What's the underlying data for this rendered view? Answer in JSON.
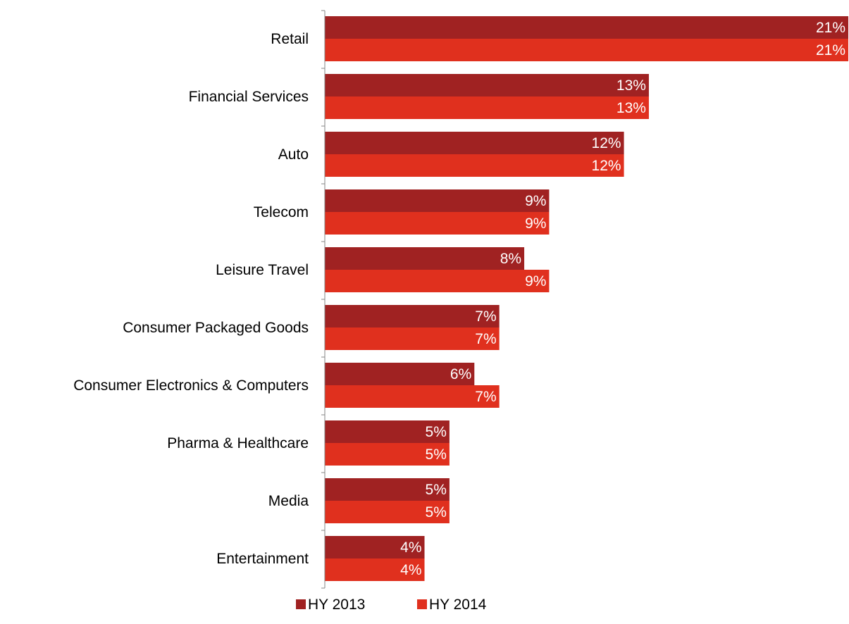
{
  "chart_data": {
    "type": "bar",
    "orientation": "horizontal",
    "categories": [
      "Retail",
      "Financial Services",
      "Auto",
      "Telecom",
      "Leisure Travel",
      "Consumer Packaged Goods",
      "Consumer Electronics & Computers",
      "Pharma & Healthcare",
      "Media",
      "Entertainment"
    ],
    "series": [
      {
        "name": "HY 2013",
        "color": "#a02222",
        "values": [
          21,
          13,
          12,
          9,
          8,
          7,
          6,
          5,
          5,
          4
        ],
        "labels": [
          "21%",
          "13%",
          "12%",
          "9%",
          "8%",
          "7%",
          "6%",
          "5%",
          "5%",
          "4%"
        ]
      },
      {
        "name": "HY 2014",
        "color": "#e0301e",
        "values": [
          21,
          13,
          12,
          9,
          9,
          7,
          7,
          5,
          5,
          4
        ],
        "labels": [
          "21%",
          "13%",
          "12%",
          "9%",
          "9%",
          "7%",
          "7%",
          "5%",
          "5%",
          "4%"
        ]
      }
    ],
    "xlim": [
      0,
      21
    ],
    "grid": false,
    "legend_position": "bottom"
  }
}
